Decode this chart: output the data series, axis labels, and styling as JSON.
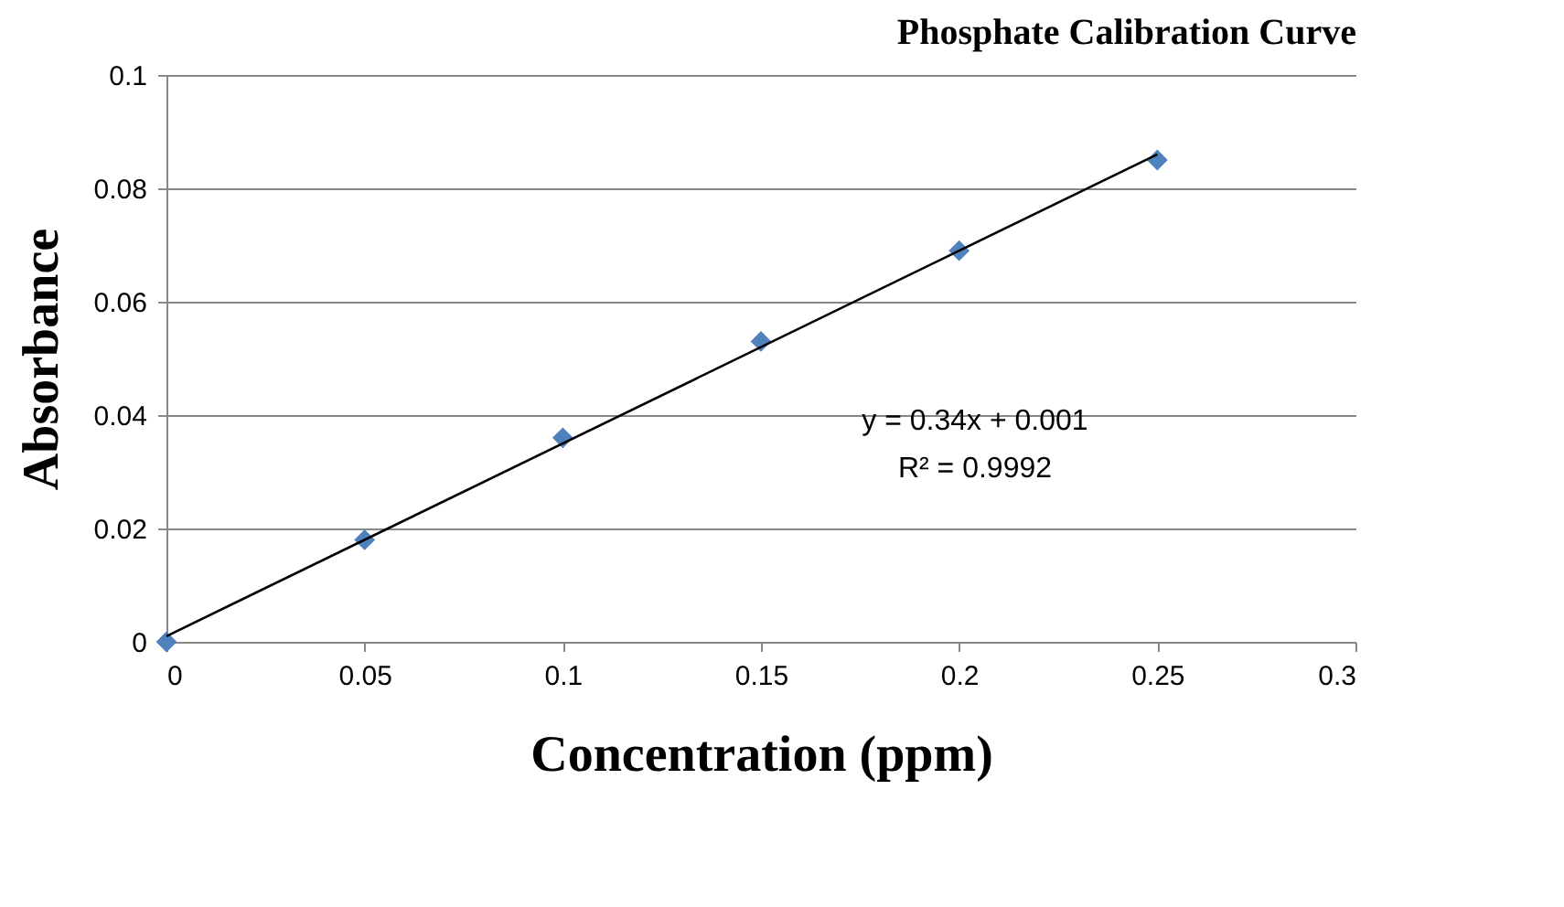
{
  "chart_data": {
    "type": "scatter",
    "title": "Phosphate Calibration Curve",
    "xlabel": "Concentration (ppm)",
    "ylabel": "Absorbance",
    "annotations": [
      "y = 0.34x + 0.001",
      "R² = 0.9992"
    ],
    "xlim": [
      0,
      0.3
    ],
    "xticks": [
      0,
      0.05,
      0.1,
      0.15,
      0.2,
      0.25,
      0.3
    ],
    "ylim": [
      0,
      0.1
    ],
    "yticks": [
      0,
      0.02,
      0.04,
      0.06,
      0.08,
      0.1
    ],
    "grid": "y",
    "series": [
      {
        "color": "#4f81bd",
        "marker": "diamond",
        "x": [
          0,
          0.05,
          0.1,
          0.15,
          0.2,
          0.25
        ],
        "values": [
          0,
          0.018,
          0.036,
          0.053,
          0.069,
          0.085
        ]
      },
      {
        "type": "line",
        "color": "#000000",
        "marker": "none",
        "line_style": "solid",
        "x": [
          0,
          0.25
        ],
        "values": [
          0.001,
          0.086
        ]
      }
    ]
  }
}
